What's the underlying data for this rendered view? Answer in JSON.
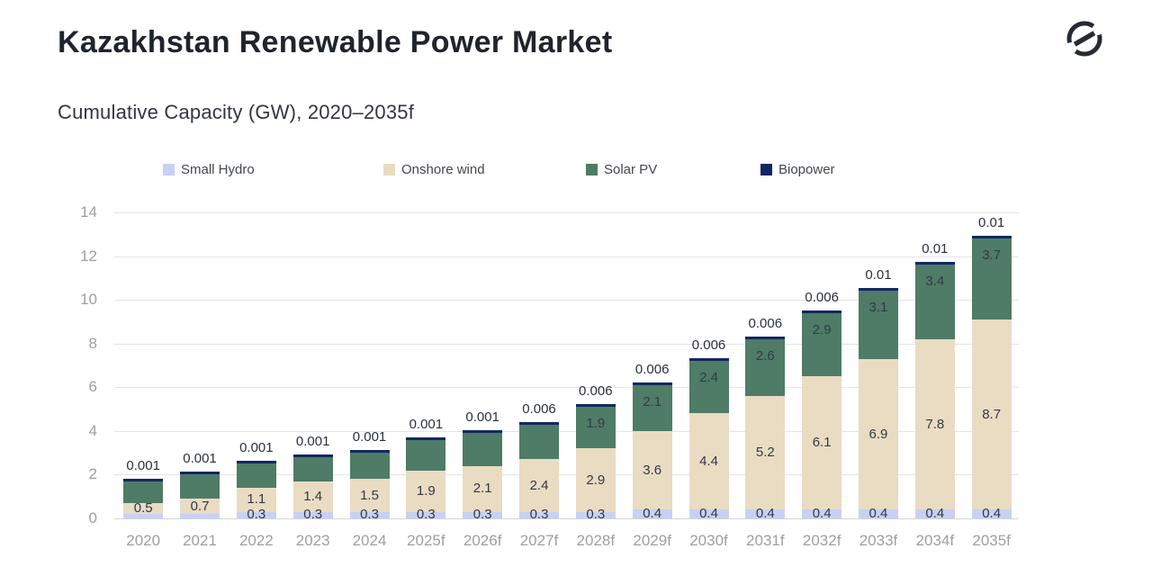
{
  "header": {
    "title": "Kazakhstan Renewable Power Market",
    "subtitle": "Cumulative Capacity (GW), 2020–2035f"
  },
  "logo": {
    "name": "globaldata-logo",
    "color": "#262a33"
  },
  "colors": {
    "small_hydro": "#c7d1f5",
    "onshore_wind": "#eadbc3",
    "solar_pv": "#4e7c66",
    "biopower": "#122761",
    "gridline": "#e4e4e4",
    "axis_text": "#9d9fa3",
    "value_text": "#333945"
  },
  "chart_data": {
    "type": "bar",
    "stacked": true,
    "title": "Cumulative Capacity (GW), 2020–2035f",
    "xlabel": "",
    "ylabel": "",
    "ylim": [
      0,
      14
    ],
    "yticks": [
      "0",
      "2",
      "4",
      "6",
      "8",
      "10",
      "12",
      "14"
    ],
    "grid": true,
    "legend_position": "top",
    "categories": [
      "2020",
      "2021",
      "2022",
      "2023",
      "2024",
      "2025f",
      "2026f",
      "2027f",
      "2028f",
      "2029f",
      "2030f",
      "2031f",
      "2032f",
      "2033f",
      "2034f",
      "2035f"
    ],
    "series": [
      {
        "name": "Small Hydro",
        "color": "#c7d1f5",
        "values": [
          0.2,
          0.2,
          0.3,
          0.3,
          0.3,
          0.3,
          0.3,
          0.3,
          0.3,
          0.4,
          0.4,
          0.4,
          0.4,
          0.4,
          0.4,
          0.4
        ],
        "labels": [
          "",
          "",
          "0.3",
          "0.3",
          "0.3",
          "0.3",
          "0.3",
          "0.3",
          "0.3",
          "0.4",
          "0.4",
          "0.4",
          "0.4",
          "0.4",
          "0.4",
          "0.4"
        ]
      },
      {
        "name": "Onshore wind",
        "color": "#eadbc3",
        "values": [
          0.5,
          0.7,
          1.1,
          1.4,
          1.5,
          1.9,
          2.1,
          2.4,
          2.9,
          3.6,
          4.4,
          5.2,
          6.1,
          6.9,
          7.8,
          8.7
        ],
        "labels": [
          "0.5",
          "0.7",
          "1.1",
          "1.4",
          "1.5",
          "1.9",
          "2.1",
          "2.4",
          "2.9",
          "3.6",
          "4.4",
          "5.2",
          "6.1",
          "6.9",
          "7.8",
          "8.7"
        ]
      },
      {
        "name": "Solar PV",
        "color": "#4e7c66",
        "values": [
          1.0,
          1.1,
          1.1,
          1.1,
          1.2,
          1.4,
          1.5,
          1.6,
          1.9,
          2.1,
          2.4,
          2.6,
          2.9,
          3.1,
          3.4,
          3.7
        ],
        "labels": [
          "",
          "",
          "",
          "",
          "",
          "",
          "",
          "",
          "1.9",
          "2.1",
          "2.4",
          "2.6",
          "2.9",
          "3.1",
          "3.4",
          "3.7"
        ]
      },
      {
        "name": "Biopower",
        "color": "#122761",
        "values": [
          0.001,
          0.001,
          0.001,
          0.001,
          0.001,
          0.001,
          0.001,
          0.006,
          0.006,
          0.006,
          0.006,
          0.006,
          0.006,
          0.01,
          0.01,
          0.01
        ],
        "labels": [
          "0.001",
          "0.001",
          "0.001",
          "0.001",
          "0.001",
          "0.001",
          "0.001",
          "0.006",
          "0.006",
          "0.006",
          "0.006",
          "0.006",
          "0.006",
          "0.01",
          "0.01",
          "0.01"
        ]
      }
    ]
  }
}
